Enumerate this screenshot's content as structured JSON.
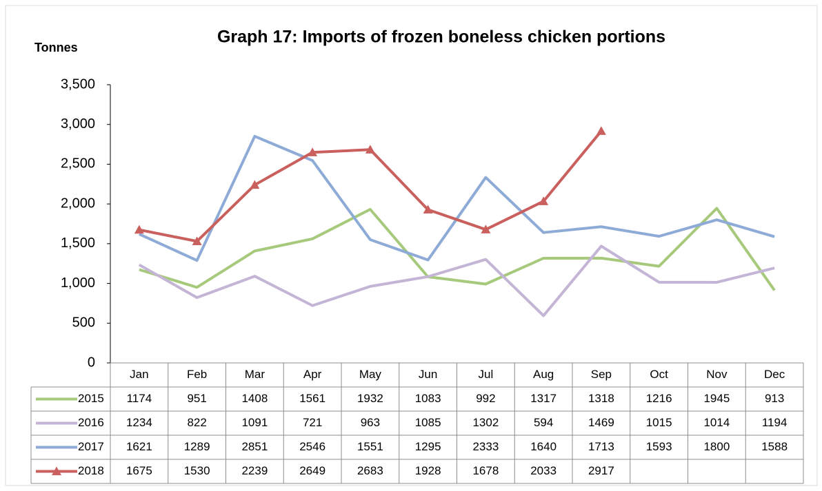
{
  "chart_data": {
    "type": "line",
    "title": "Graph 17: Imports of frozen boneless chicken portions",
    "y_label": "Tonnes",
    "categories": [
      "Jan",
      "Feb",
      "Mar",
      "Apr",
      "May",
      "Jun",
      "Jul",
      "Aug",
      "Sep",
      "Oct",
      "Nov",
      "Dec"
    ],
    "series": [
      {
        "name": "2015",
        "color": "#a6c97b",
        "values": [
          1174,
          951,
          1408,
          1561,
          1932,
          1083,
          992,
          1317,
          1318,
          1216,
          1945,
          913
        ]
      },
      {
        "name": "2016",
        "color": "#c4b4d6",
        "values": [
          1234,
          822,
          1091,
          721,
          963,
          1085,
          1302,
          594,
          1469,
          1015,
          1014,
          1194
        ]
      },
      {
        "name": "2017",
        "color": "#8dabd6",
        "values": [
          1621,
          1289,
          2851,
          2546,
          1551,
          1295,
          2333,
          1640,
          1713,
          1593,
          1800,
          1588
        ]
      },
      {
        "name": "2018",
        "color": "#c9605e",
        "marker": "triangle",
        "values": [
          1675,
          1530,
          2239,
          2649,
          2683,
          1928,
          1678,
          2033,
          2917,
          null,
          null,
          null
        ]
      }
    ],
    "ylim": [
      0,
      3500
    ],
    "yticks": [
      0,
      500,
      {
        "value": 1000,
        "label": "1,000"
      },
      {
        "value": 1500,
        "label": "1,500"
      },
      {
        "value": 2000,
        "label": "2,000"
      },
      {
        "value": 2500,
        "label": "2,500"
      },
      {
        "value": 3000,
        "label": "3,000"
      },
      {
        "value": 3500,
        "label": "3,500"
      }
    ],
    "grid": false,
    "data_table": true
  }
}
